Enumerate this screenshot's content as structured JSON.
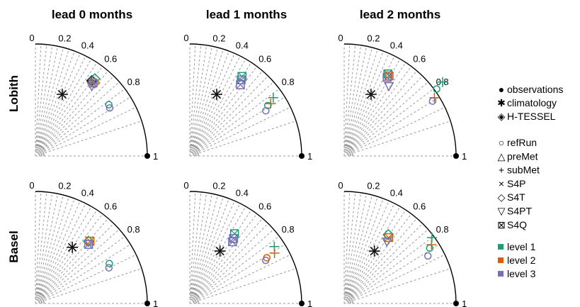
{
  "colors": {
    "level1": "#1b9e77",
    "level2": "#d95f02",
    "level3": "#7570b3",
    "black": "#111111",
    "grid": "#9a9a9a"
  },
  "headers": {
    "columns": [
      "lead 0 months",
      "lead 1 months",
      "lead 2 months"
    ],
    "rows": [
      "Lobith",
      "Basel"
    ]
  },
  "legend": {
    "reference": [
      {
        "symbol": "●",
        "label": "observations",
        "icon": "filled-circle-icon"
      },
      {
        "symbol": "✱",
        "label": "climatology",
        "icon": "asterisk-icon"
      },
      {
        "symbol": "◈",
        "label": "H-TESSEL",
        "icon": "diamond-plus-icon"
      }
    ],
    "experiments": [
      {
        "symbol": "○",
        "label": "refRun",
        "icon": "circle-icon"
      },
      {
        "symbol": "△",
        "label": "preMet",
        "icon": "triangle-icon"
      },
      {
        "symbol": "+",
        "label": "subMet",
        "icon": "plus-icon"
      },
      {
        "symbol": "×",
        "label": "S4P",
        "icon": "cross-icon"
      },
      {
        "symbol": "◇",
        "label": "S4T",
        "icon": "diamond-icon"
      },
      {
        "symbol": "▽",
        "label": "S4PT",
        "icon": "down-triangle-icon"
      },
      {
        "symbol": "⊠",
        "label": "S4Q",
        "icon": "boxed-cross-icon"
      }
    ],
    "levels": [
      {
        "label": "level 1",
        "color": "#1b9e77"
      },
      {
        "label": "level 2",
        "color": "#d95f02"
      },
      {
        "label": "level 3",
        "color": "#7570b3"
      }
    ]
  },
  "chart_data": [
    {
      "type": "taylor",
      "column": "lead 0 months",
      "row": "Lobith",
      "corr_ticks": [
        "0",
        "0.2",
        "0.4",
        "0.6",
        "0.8",
        "1"
      ],
      "reference_point": {
        "label": "observations",
        "sd": 1.0,
        "corr": 1.0
      },
      "points": [
        {
          "marker": "asterisk",
          "level": null,
          "sd": 0.6,
          "corr": 0.4
        },
        {
          "marker": "htessel",
          "level": null,
          "sd": 0.84,
          "corr": 0.6
        },
        {
          "marker": "diamond",
          "level": 1,
          "sd": 0.87,
          "corr": 0.61
        },
        {
          "marker": "diamond",
          "level": 2,
          "sd": 0.84,
          "corr": 0.63
        },
        {
          "marker": "boxx",
          "level": 3,
          "sd": 0.83,
          "corr": 0.62
        },
        {
          "marker": "downtri",
          "level": 3,
          "sd": 0.8,
          "corr": 0.63
        },
        {
          "marker": "circle",
          "level": 1,
          "sd": 0.8,
          "corr": 0.82
        },
        {
          "marker": "circle",
          "level": 3,
          "sd": 0.79,
          "corr": 0.84
        }
      ]
    },
    {
      "type": "taylor",
      "column": "lead 1 months",
      "row": "Lobith",
      "corr_ticks": [
        "0",
        "0.2",
        "0.4",
        "0.6",
        "0.8",
        "1"
      ],
      "reference_point": {
        "label": "observations",
        "sd": 1.0,
        "corr": 1.0
      },
      "points": [
        {
          "marker": "asterisk",
          "level": null,
          "sd": 0.6,
          "corr": 0.4
        },
        {
          "marker": "boxx",
          "level": 1,
          "sd": 0.85,
          "corr": 0.55
        },
        {
          "marker": "boxx",
          "level": 3,
          "sd": 0.82,
          "corr": 0.56
        },
        {
          "marker": "boxx",
          "level": 3,
          "sd": 0.78,
          "corr": 0.58
        },
        {
          "marker": "plus",
          "level": 1,
          "sd": 0.91,
          "corr": 0.82
        },
        {
          "marker": "plus",
          "level": 2,
          "sd": 0.86,
          "corr": 0.84
        },
        {
          "marker": "circle",
          "level": 1,
          "sd": 0.83,
          "corr": 0.84
        },
        {
          "marker": "circle",
          "level": 3,
          "sd": 0.79,
          "corr": 0.86
        }
      ]
    },
    {
      "type": "taylor",
      "column": "lead 2 months",
      "row": "Lobith",
      "corr_ticks": [
        "0",
        "0.2",
        "0.4",
        "0.6",
        "0.8",
        "1"
      ],
      "reference_point": {
        "label": "observations",
        "sd": 1.0,
        "corr": 1.0
      },
      "points": [
        {
          "marker": "asterisk",
          "level": null,
          "sd": 0.6,
          "corr": 0.4
        },
        {
          "marker": "boxx",
          "level": 1,
          "sd": 0.83,
          "corr": 0.47
        },
        {
          "marker": "boxx",
          "level": 2,
          "sd": 0.82,
          "corr": 0.49
        },
        {
          "marker": "boxx",
          "level": 3,
          "sd": 0.8,
          "corr": 0.48
        },
        {
          "marker": "downtri",
          "level": 3,
          "sd": 0.74,
          "corr": 0.54
        },
        {
          "marker": "plus",
          "level": 1,
          "sd": 1.1,
          "corr": 0.8
        },
        {
          "marker": "circle",
          "level": 1,
          "sd": 1.02,
          "corr": 0.81
        },
        {
          "marker": "plus",
          "level": 2,
          "sd": 0.96,
          "corr": 0.84
        },
        {
          "marker": "circle",
          "level": 3,
          "sd": 0.93,
          "corr": 0.85
        }
      ]
    },
    {
      "type": "taylor",
      "column": "lead 0 months",
      "row": "Basel",
      "corr_ticks": [
        "0",
        "0.2",
        "0.4",
        "0.6",
        "0.8",
        "1"
      ],
      "reference_point": {
        "label": "observations",
        "sd": 1.0,
        "corr": 1.0
      },
      "points": [
        {
          "marker": "asterisk",
          "level": null,
          "sd": 0.6,
          "corr": 0.55
        },
        {
          "marker": "diamond",
          "level": 1,
          "sd": 0.73,
          "corr": 0.65
        },
        {
          "marker": "boxx",
          "level": 2,
          "sd": 0.74,
          "corr": 0.66
        },
        {
          "marker": "boxx",
          "level": 3,
          "sd": 0.71,
          "corr": 0.67
        },
        {
          "marker": "circle",
          "level": 1,
          "sd": 0.75,
          "corr": 0.88
        },
        {
          "marker": "circle",
          "level": 3,
          "sd": 0.73,
          "corr": 0.9
        }
      ]
    },
    {
      "type": "taylor",
      "column": "lead 1 months",
      "row": "Basel",
      "corr_ticks": [
        "0",
        "0.2",
        "0.4",
        "0.6",
        "0.8",
        "1"
      ],
      "reference_point": {
        "label": "observations",
        "sd": 1.0,
        "corr": 1.0
      },
      "points": [
        {
          "marker": "asterisk",
          "level": null,
          "sd": 0.54,
          "corr": 0.5
        },
        {
          "marker": "boxx",
          "level": 1,
          "sd": 0.74,
          "corr": 0.54
        },
        {
          "marker": "boxx",
          "level": 3,
          "sd": 0.7,
          "corr": 0.56
        },
        {
          "marker": "boxx",
          "level": 3,
          "sd": 0.67,
          "corr": 0.57
        },
        {
          "marker": "plus",
          "level": 1,
          "sd": 0.91,
          "corr": 0.83
        },
        {
          "marker": "plus",
          "level": 2,
          "sd": 0.88,
          "corr": 0.86
        },
        {
          "marker": "circle",
          "level": 2,
          "sd": 0.8,
          "corr": 0.86
        },
        {
          "marker": "circle",
          "level": 3,
          "sd": 0.78,
          "corr": 0.87
        }
      ]
    },
    {
      "type": "taylor",
      "column": "lead 2 months",
      "row": "Basel",
      "corr_ticks": [
        "0",
        "0.2",
        "0.4",
        "0.6",
        "0.8",
        "1"
      ],
      "reference_point": {
        "label": "observations",
        "sd": 1.0,
        "corr": 1.0
      },
      "points": [
        {
          "marker": "asterisk",
          "level": null,
          "sd": 0.54,
          "corr": 0.5
        },
        {
          "marker": "diamond",
          "level": 1,
          "sd": 0.73,
          "corr": 0.54
        },
        {
          "marker": "boxx",
          "level": 2,
          "sd": 0.71,
          "corr": 0.56
        },
        {
          "marker": "downtri",
          "level": 3,
          "sd": 0.67,
          "corr": 0.57
        },
        {
          "marker": "plus",
          "level": 1,
          "sd": 0.98,
          "corr": 0.8
        },
        {
          "marker": "plus",
          "level": 2,
          "sd": 0.94,
          "corr": 0.83
        },
        {
          "marker": "circle",
          "level": 1,
          "sd": 0.91,
          "corr": 0.84
        },
        {
          "marker": "circle",
          "level": 3,
          "sd": 0.86,
          "corr": 0.87
        }
      ]
    }
  ]
}
